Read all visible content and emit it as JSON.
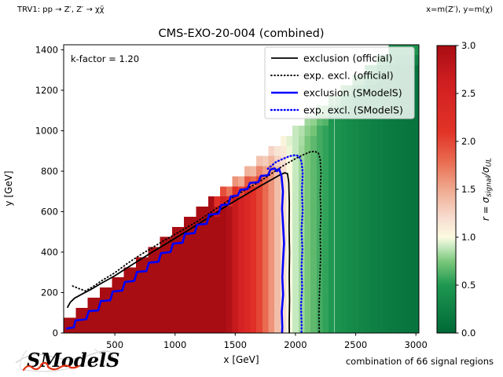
{
  "header": {
    "model_label": "TRV1: pp → Z′, Z′ → χχ̄",
    "axes_note": "x=m(Z′), y=m(χ)"
  },
  "title": "CMS-EXO-20-004 (combined)",
  "annotations": {
    "k_factor": "k-factor = 1.20",
    "footer_note": "combination of 66 signal regions",
    "logo_text": "SModelS"
  },
  "axes": {
    "xlabel": "x [GeV]",
    "ylabel": "y [GeV]",
    "xticks": [
      500,
      1000,
      1500,
      2000,
      2500,
      3000
    ],
    "yticks": [
      0,
      200,
      400,
      600,
      800,
      1000,
      1200,
      1400
    ],
    "xlim": [
      75,
      3025
    ],
    "ylim": [
      0,
      1425
    ]
  },
  "legend": {
    "entries": [
      {
        "label": "exclusion (official)",
        "color": "#000000",
        "style": "solid",
        "width": 1.8
      },
      {
        "label": "exp. excl. (official)",
        "color": "#000000",
        "style": "dotted",
        "width": 1.9
      },
      {
        "label": "exclusion (SModelS)",
        "color": "#0000ff",
        "style": "solid",
        "width": 2.6
      },
      {
        "label": "exp. excl. (SModelS)",
        "color": "#0000ff",
        "style": "dotted",
        "width": 2.4
      }
    ]
  },
  "colorbar": {
    "ticks": [
      "0.0",
      "0.5",
      "1.0",
      "1.5",
      "2.0",
      "2.5",
      "3.0"
    ],
    "vmin": 0,
    "vmax": 3,
    "label_parts": {
      "prefix": "r = σ",
      "sub1": "signal",
      "mid": "/σ",
      "sub2": "UL"
    },
    "stops": [
      {
        "v": 0.0,
        "c": "#006837"
      },
      {
        "v": 0.5,
        "c": "#1e9850"
      },
      {
        "v": 0.75,
        "c": "#7cc87c"
      },
      {
        "v": 0.9,
        "c": "#c7e9c0"
      },
      {
        "v": 1.0,
        "c": "#fbfbe0"
      },
      {
        "v": 1.2,
        "c": "#f7ddd0"
      },
      {
        "v": 1.5,
        "c": "#efa98f"
      },
      {
        "v": 1.8,
        "c": "#e96a4f"
      },
      {
        "v": 2.1,
        "c": "#e23327"
      },
      {
        "v": 2.6,
        "c": "#d11f21"
      },
      {
        "v": 3.0,
        "c": "#a80d13"
      }
    ]
  },
  "chart_data": {
    "type": "heatmap",
    "title": "CMS-EXO-20-004 (combined)",
    "xlabel": "x [GeV]",
    "ylabel": "y [GeV]",
    "value_label": "r = sigma_signal / sigma_UL",
    "clip_max": 3,
    "grid": {
      "x_min": 100,
      "x_max": 3000,
      "x_step": 50,
      "y_min": 0,
      "y_max": 1400,
      "y_step": 50,
      "mask": "cells exist only where y <= x/2 (kinematic staircase boundary)"
    },
    "column_r": [
      3.5,
      3.5,
      3.5,
      3.5,
      3.5,
      3.5,
      3.5,
      3.5,
      3.5,
      3.5,
      3.5,
      3.5,
      3.5,
      3.5,
      3.5,
      3.5,
      3.5,
      3.5,
      3.5,
      3.5,
      3.5,
      3.5,
      3.5,
      3.4,
      3.3,
      3.2,
      3.1,
      2.9,
      2.7,
      2.5,
      2.35,
      2.2,
      2.0,
      1.8,
      1.6,
      1.38,
      1.18,
      1.0,
      0.9,
      0.82,
      0.74,
      0.67,
      0.6,
      0.55,
      0.5,
      0.45,
      0.41,
      0.37,
      0.34,
      0.31,
      0.28,
      0.25,
      0.23,
      0.21,
      0.19,
      0.17,
      0.15,
      0.13,
      0.11
    ],
    "edge_top_r": [
      null,
      null,
      null,
      null,
      null,
      null,
      null,
      null,
      null,
      null,
      null,
      null,
      null,
      null,
      null,
      null,
      null,
      null,
      null,
      null,
      null,
      null,
      null,
      null,
      null,
      2.2,
      1.95,
      1.75,
      1.6,
      1.5,
      1.45,
      1.4,
      1.35,
      1.3,
      1.25,
      1.15,
      1.05,
      0.95,
      0.9,
      0.86,
      0.82,
      0.79,
      0.76,
      0.73,
      0.7,
      0.68,
      0.66,
      0.64,
      0.62,
      0.6,
      0.58,
      0.56,
      0.54,
      0.52,
      0.5,
      0.49,
      0.48,
      0.47,
      0.46
    ],
    "curves": [
      {
        "name": "exclusion (official)",
        "color": "#000000",
        "style": "solid",
        "width": 1.8,
        "points": [
          [
            105,
            125
          ],
          [
            130,
            152
          ],
          [
            165,
            172
          ],
          [
            220,
            190
          ],
          [
            300,
            215
          ],
          [
            400,
            250
          ],
          [
            500,
            283
          ],
          [
            600,
            321
          ],
          [
            700,
            359
          ],
          [
            800,
            396
          ],
          [
            900,
            432
          ],
          [
            1000,
            468
          ],
          [
            1100,
            504
          ],
          [
            1200,
            542
          ],
          [
            1300,
            578
          ],
          [
            1400,
            618
          ],
          [
            1500,
            654
          ],
          [
            1600,
            689
          ],
          [
            1700,
            724
          ],
          [
            1800,
            758
          ],
          [
            1860,
            778
          ],
          [
            1910,
            792
          ],
          [
            1934,
            788
          ],
          [
            1944,
            745
          ],
          [
            1949,
            640
          ],
          [
            1947,
            520
          ],
          [
            1951,
            400
          ],
          [
            1948,
            280
          ],
          [
            1951,
            160
          ],
          [
            1948,
            60
          ],
          [
            1949,
            0
          ]
        ]
      },
      {
        "name": "exp. excl. (official)",
        "color": "#000000",
        "style": "dotted",
        "width": 1.9,
        "points": [
          [
            150,
            232
          ],
          [
            200,
            220
          ],
          [
            255,
            208
          ],
          [
            310,
            226
          ],
          [
            400,
            262
          ],
          [
            500,
            298
          ],
          [
            600,
            342
          ],
          [
            700,
            382
          ],
          [
            800,
            418
          ],
          [
            900,
            454
          ],
          [
            1000,
            488
          ],
          [
            1100,
            522
          ],
          [
            1200,
            558
          ],
          [
            1300,
            598
          ],
          [
            1400,
            638
          ],
          [
            1500,
            678
          ],
          [
            1600,
            714
          ],
          [
            1700,
            748
          ],
          [
            1800,
            788
          ],
          [
            1900,
            828
          ],
          [
            2000,
            862
          ],
          [
            2060,
            880
          ],
          [
            2120,
            895
          ],
          [
            2160,
            898
          ],
          [
            2190,
            890
          ],
          [
            2205,
            860
          ],
          [
            2212,
            790
          ],
          [
            2206,
            690
          ],
          [
            2211,
            590
          ],
          [
            2205,
            490
          ],
          [
            2209,
            390
          ],
          [
            2204,
            290
          ],
          [
            2199,
            190
          ],
          [
            2195,
            95
          ],
          [
            2198,
            0
          ]
        ]
      },
      {
        "name": "exclusion (SModelS)",
        "color": "#0000ff",
        "style": "solid",
        "width": 2.6,
        "points": [
          [
            95,
            22
          ],
          [
            160,
            28
          ],
          [
            172,
            62
          ],
          [
            262,
            68
          ],
          [
            283,
            108
          ],
          [
            362,
            112
          ],
          [
            383,
            158
          ],
          [
            462,
            162
          ],
          [
            483,
            205
          ],
          [
            562,
            210
          ],
          [
            583,
            252
          ],
          [
            662,
            258
          ],
          [
            683,
            302
          ],
          [
            762,
            306
          ],
          [
            783,
            348
          ],
          [
            862,
            352
          ],
          [
            883,
            395
          ],
          [
            962,
            400
          ],
          [
            983,
            442
          ],
          [
            1062,
            446
          ],
          [
            1083,
            490
          ],
          [
            1162,
            494
          ],
          [
            1183,
            535
          ],
          [
            1262,
            540
          ],
          [
            1283,
            585
          ],
          [
            1362,
            590
          ],
          [
            1383,
            632
          ],
          [
            1442,
            636
          ],
          [
            1462,
            675
          ],
          [
            1522,
            680
          ],
          [
            1542,
            708
          ],
          [
            1602,
            712
          ],
          [
            1622,
            742
          ],
          [
            1692,
            746
          ],
          [
            1712,
            776
          ],
          [
            1772,
            780
          ],
          [
            1792,
            808
          ],
          [
            1828,
            814
          ],
          [
            1846,
            800
          ],
          [
            1864,
            812
          ],
          [
            1884,
            775
          ],
          [
            1896,
            700
          ],
          [
            1889,
            615
          ],
          [
            1897,
            530
          ],
          [
            1905,
            445
          ],
          [
            1897,
            360
          ],
          [
            1891,
            275
          ],
          [
            1897,
            190
          ],
          [
            1886,
            105
          ],
          [
            1891,
            30
          ],
          [
            1889,
            0
          ]
        ]
      },
      {
        "name": "exp. excl. (SModelS)",
        "color": "#0000ff",
        "style": "dotted",
        "width": 2.4,
        "points": [
          [
            1770,
            812
          ],
          [
            1840,
            846
          ],
          [
            1900,
            862
          ],
          [
            1950,
            874
          ],
          [
            2000,
            880
          ],
          [
            2030,
            874
          ],
          [
            2050,
            848
          ],
          [
            2060,
            795
          ],
          [
            2054,
            700
          ],
          [
            2060,
            605
          ],
          [
            2050,
            510
          ],
          [
            2057,
            415
          ],
          [
            2050,
            320
          ],
          [
            2055,
            225
          ],
          [
            2046,
            130
          ],
          [
            2051,
            40
          ],
          [
            2050,
            0
          ]
        ]
      }
    ]
  }
}
